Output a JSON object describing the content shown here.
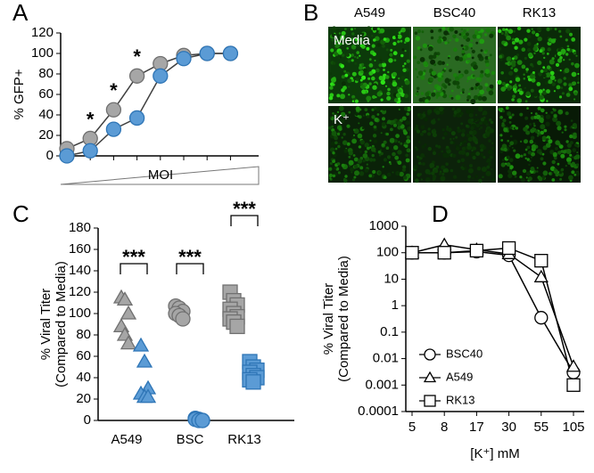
{
  "chart_data": [
    {
      "type": "line",
      "panel": "A",
      "ylabel": "% GFP+",
      "xlabel": "MOI",
      "categories": [
        null,
        null,
        null,
        null,
        null,
        null,
        null,
        null
      ],
      "ylim": [
        0,
        120
      ],
      "yticks": [
        0,
        20,
        40,
        60,
        80,
        100,
        120
      ],
      "series": [
        {
          "color": "#a6a6a6",
          "marker": "circle",
          "values": [
            7,
            17,
            45,
            78,
            90,
            98,
            100,
            100
          ]
        },
        {
          "color": "#5b9bd5",
          "marker": "circle",
          "values": [
            0,
            5,
            26,
            37,
            78,
            95,
            100,
            100
          ]
        }
      ],
      "annotations": [
        "*",
        "*",
        "*"
      ]
    },
    {
      "type": "image",
      "panel": "B",
      "columns": [
        "A549",
        "BSC40",
        "RK13"
      ],
      "rows": [
        "Media",
        "K⁺"
      ]
    },
    {
      "type": "strip",
      "panel": "C",
      "ylabel": [
        "% Viral Titer",
        "(Compared to Media)"
      ],
      "categories": [
        "A549",
        "BSC",
        "RK13"
      ],
      "ylim": [
        0,
        180
      ],
      "yticks": [
        0,
        20,
        40,
        60,
        80,
        100,
        120,
        140,
        160,
        180
      ],
      "series": [
        {
          "color": "#a6a6a6",
          "marker": "triangle",
          "values": [
            115,
            113,
            100,
            88,
            80,
            72
          ]
        },
        {
          "color": "#5b9bd5",
          "marker": "triangle",
          "values": [
            70,
            55,
            30,
            25,
            22,
            22
          ]
        },
        {
          "color": "#a6a6a6",
          "marker": "circle",
          "values": [
            107,
            105,
            102,
            100,
            98,
            95
          ]
        },
        {
          "color": "#5b9bd5",
          "marker": "circle",
          "values": [
            2,
            1,
            0,
            1,
            0,
            0
          ]
        },
        {
          "color": "#a6a6a6",
          "marker": "square",
          "values": [
            120,
            112,
            108,
            104,
            100,
            97,
            95,
            92,
            88
          ]
        },
        {
          "color": "#5b9bd5",
          "marker": "square",
          "values": [
            55,
            50,
            47,
            45,
            42,
            40,
            38,
            36
          ]
        }
      ],
      "annotations": [
        "***",
        "***",
        "***"
      ]
    },
    {
      "type": "line",
      "panel": "D",
      "log": true,
      "ylabel": [
        "% Viral Titer",
        "(Compared to Media)"
      ],
      "xlabel": "[K⁺] mM",
      "categories": [
        "5",
        "8",
        "17",
        "30",
        "55",
        "105"
      ],
      "ylim": [
        0.0001,
        1000
      ],
      "yticks": [
        0.0001,
        0.001,
        0.01,
        0.1,
        1,
        10,
        100,
        1000
      ],
      "legend": "lower left",
      "series": [
        {
          "name": "BSC40",
          "color": "#000000",
          "marker": "circle",
          "values": [
            100,
            100,
            110,
            80,
            0.35,
            0.003
          ]
        },
        {
          "name": "A549",
          "color": "#000000",
          "marker": "triangle",
          "values": [
            100,
            200,
            130,
            90,
            12,
            0.005
          ]
        },
        {
          "name": "RK13",
          "color": "#000000",
          "marker": "square",
          "values": [
            100,
            100,
            120,
            150,
            50,
            0.001
          ]
        }
      ]
    }
  ]
}
